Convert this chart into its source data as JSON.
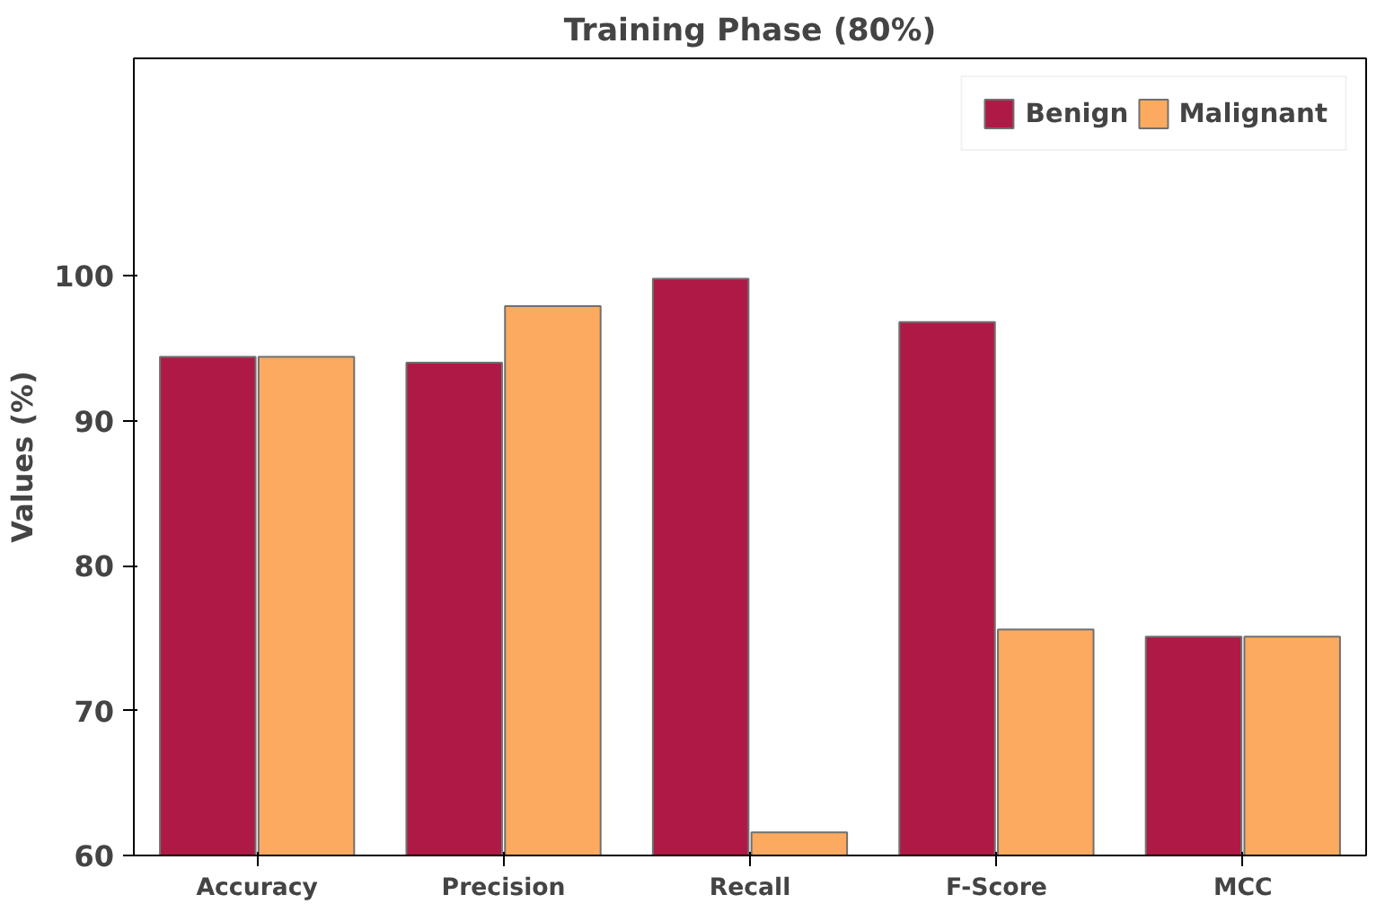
{
  "chart_data": {
    "type": "bar",
    "title": "Training Phase (80%)",
    "ylabel": "Values (%)",
    "categories": [
      "Accuracy",
      "Precision",
      "Recall",
      "F-Score",
      "MCC"
    ],
    "series": [
      {
        "name": "Benign",
        "color": "#ae1a45",
        "values": [
          94.4,
          94.0,
          99.8,
          96.8,
          75.1
        ]
      },
      {
        "name": "Malignant",
        "color": "#fbaa5f",
        "values": [
          94.4,
          97.9,
          61.6,
          75.6,
          75.1
        ]
      }
    ],
    "ylim": [
      60,
      115
    ],
    "yticks": [
      60,
      70,
      80,
      90,
      100
    ],
    "grid": false,
    "legend": "top right"
  }
}
